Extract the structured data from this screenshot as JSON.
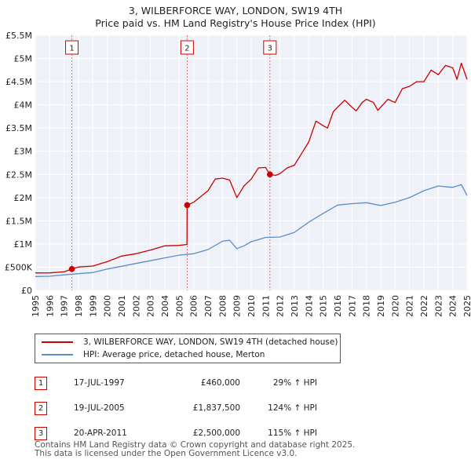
{
  "title_line1": "3, WILBERFORCE WAY, LONDON, SW19 4TH",
  "title_line2": "Price paid vs. HM Land Registry's House Price Index (HPI)",
  "chart_data": {
    "type": "line",
    "xlim": [
      1995,
      2025
    ],
    "ylim": [
      0,
      5500000
    ],
    "x_ticks": [
      1995,
      1996,
      1997,
      1998,
      1999,
      2000,
      2001,
      2002,
      2003,
      2004,
      2005,
      2006,
      2007,
      2008,
      2009,
      2010,
      2011,
      2012,
      2013,
      2014,
      2015,
      2016,
      2017,
      2018,
      2019,
      2020,
      2021,
      2022,
      2023,
      2024,
      2025
    ],
    "y_ticks": [
      {
        "value": 0,
        "label": "£0"
      },
      {
        "value": 500000,
        "label": "£500K"
      },
      {
        "value": 1000000,
        "label": "£1M"
      },
      {
        "value": 1500000,
        "label": "£1.5M"
      },
      {
        "value": 2000000,
        "label": "£2M"
      },
      {
        "value": 2500000,
        "label": "£2.5M"
      },
      {
        "value": 3000000,
        "label": "£3M"
      },
      {
        "value": 3500000,
        "label": "£3.5M"
      },
      {
        "value": 4000000,
        "label": "£4M"
      },
      {
        "value": 4500000,
        "label": "£4.5M"
      },
      {
        "value": 5000000,
        "label": "£5M"
      },
      {
        "value": 5500000,
        "label": "£5.5M"
      }
    ],
    "series": [
      {
        "name": "3, WILBERFORCE WAY, LONDON, SW19 4TH (detached house)",
        "color": "#cc0000",
        "points": [
          [
            1995,
            375000
          ],
          [
            1996,
            378000
          ],
          [
            1997,
            400000
          ],
          [
            1997.54,
            460000
          ],
          [
            1998,
            505000
          ],
          [
            1999,
            525000
          ],
          [
            2000,
            620000
          ],
          [
            2001,
            740000
          ],
          [
            2002,
            790000
          ],
          [
            2003,
            870000
          ],
          [
            2004,
            960000
          ],
          [
            2005,
            970000
          ],
          [
            2005.54,
            990000
          ],
          [
            2005.55,
            1837500
          ],
          [
            2006,
            1900000
          ],
          [
            2007,
            2150000
          ],
          [
            2007.5,
            2400000
          ],
          [
            2008,
            2420000
          ],
          [
            2008.5,
            2380000
          ],
          [
            2009,
            2000000
          ],
          [
            2009.5,
            2250000
          ],
          [
            2010,
            2400000
          ],
          [
            2010.5,
            2640000
          ],
          [
            2011,
            2650000
          ],
          [
            2011.3,
            2500000
          ],
          [
            2011.7,
            2480000
          ],
          [
            2012,
            2520000
          ],
          [
            2012.5,
            2640000
          ],
          [
            2013,
            2700000
          ],
          [
            2013.5,
            2950000
          ],
          [
            2014,
            3200000
          ],
          [
            2014.5,
            3650000
          ],
          [
            2015,
            3550000
          ],
          [
            2015.3,
            3500000
          ],
          [
            2015.7,
            3850000
          ],
          [
            2016,
            3950000
          ],
          [
            2016.5,
            4100000
          ],
          [
            2017,
            3950000
          ],
          [
            2017.3,
            3870000
          ],
          [
            2017.7,
            4050000
          ],
          [
            2018,
            4120000
          ],
          [
            2018.5,
            4050000
          ],
          [
            2018.8,
            3880000
          ],
          [
            2019,
            3950000
          ],
          [
            2019.5,
            4120000
          ],
          [
            2020,
            4050000
          ],
          [
            2020.5,
            4350000
          ],
          [
            2021,
            4400000
          ],
          [
            2021.5,
            4500000
          ],
          [
            2022,
            4500000
          ],
          [
            2022.5,
            4750000
          ],
          [
            2023,
            4650000
          ],
          [
            2023.5,
            4850000
          ],
          [
            2024,
            4800000
          ],
          [
            2024.3,
            4550000
          ],
          [
            2024.6,
            4900000
          ],
          [
            2025,
            4550000
          ]
        ]
      },
      {
        "name": "HPI: Average price, detached house, Merton",
        "color": "#5b8dc9",
        "points": [
          [
            1995,
            300000
          ],
          [
            1996,
            305000
          ],
          [
            1997,
            335000
          ],
          [
            1998,
            360000
          ],
          [
            1999,
            385000
          ],
          [
            2000,
            460000
          ],
          [
            2001,
            520000
          ],
          [
            2002,
            580000
          ],
          [
            2003,
            640000
          ],
          [
            2004,
            700000
          ],
          [
            2005,
            760000
          ],
          [
            2006,
            790000
          ],
          [
            2007,
            880000
          ],
          [
            2008,
            1060000
          ],
          [
            2008.5,
            1080000
          ],
          [
            2009,
            900000
          ],
          [
            2009.5,
            960000
          ],
          [
            2010,
            1050000
          ],
          [
            2011,
            1140000
          ],
          [
            2012,
            1150000
          ],
          [
            2013,
            1250000
          ],
          [
            2014,
            1470000
          ],
          [
            2015,
            1660000
          ],
          [
            2016,
            1840000
          ],
          [
            2017,
            1870000
          ],
          [
            2018,
            1890000
          ],
          [
            2019,
            1830000
          ],
          [
            2020,
            1900000
          ],
          [
            2021,
            2000000
          ],
          [
            2022,
            2150000
          ],
          [
            2023,
            2250000
          ],
          [
            2024,
            2220000
          ],
          [
            2024.6,
            2280000
          ],
          [
            2025,
            2050000
          ]
        ]
      }
    ],
    "sales": [
      {
        "label": "1",
        "x": 1997.54,
        "price": 460000
      },
      {
        "label": "2",
        "x": 2005.55,
        "price": 1837500
      },
      {
        "label": "3",
        "x": 2011.3,
        "price": 2500000
      }
    ]
  },
  "legend": [
    {
      "label": "3, WILBERFORCE WAY, LONDON, SW19 4TH (detached house)",
      "color": "#cc0000"
    },
    {
      "label": "HPI: Average price, detached house, Merton",
      "color": "#5b8dc9"
    }
  ],
  "sales_table": [
    {
      "num": "1",
      "date": "17-JUL-1997",
      "price": "£460,000",
      "hpi": "29% ↑ HPI"
    },
    {
      "num": "2",
      "date": "19-JUL-2005",
      "price": "£1,837,500",
      "hpi": "124% ↑ HPI"
    },
    {
      "num": "3",
      "date": "20-APR-2011",
      "price": "£2,500,000",
      "hpi": "115% ↑ HPI"
    }
  ],
  "footer": {
    "line1": "Contains HM Land Registry data © Crown copyright and database right 2025.",
    "line2": "This data is licensed under the Open Government Licence v3.0."
  }
}
